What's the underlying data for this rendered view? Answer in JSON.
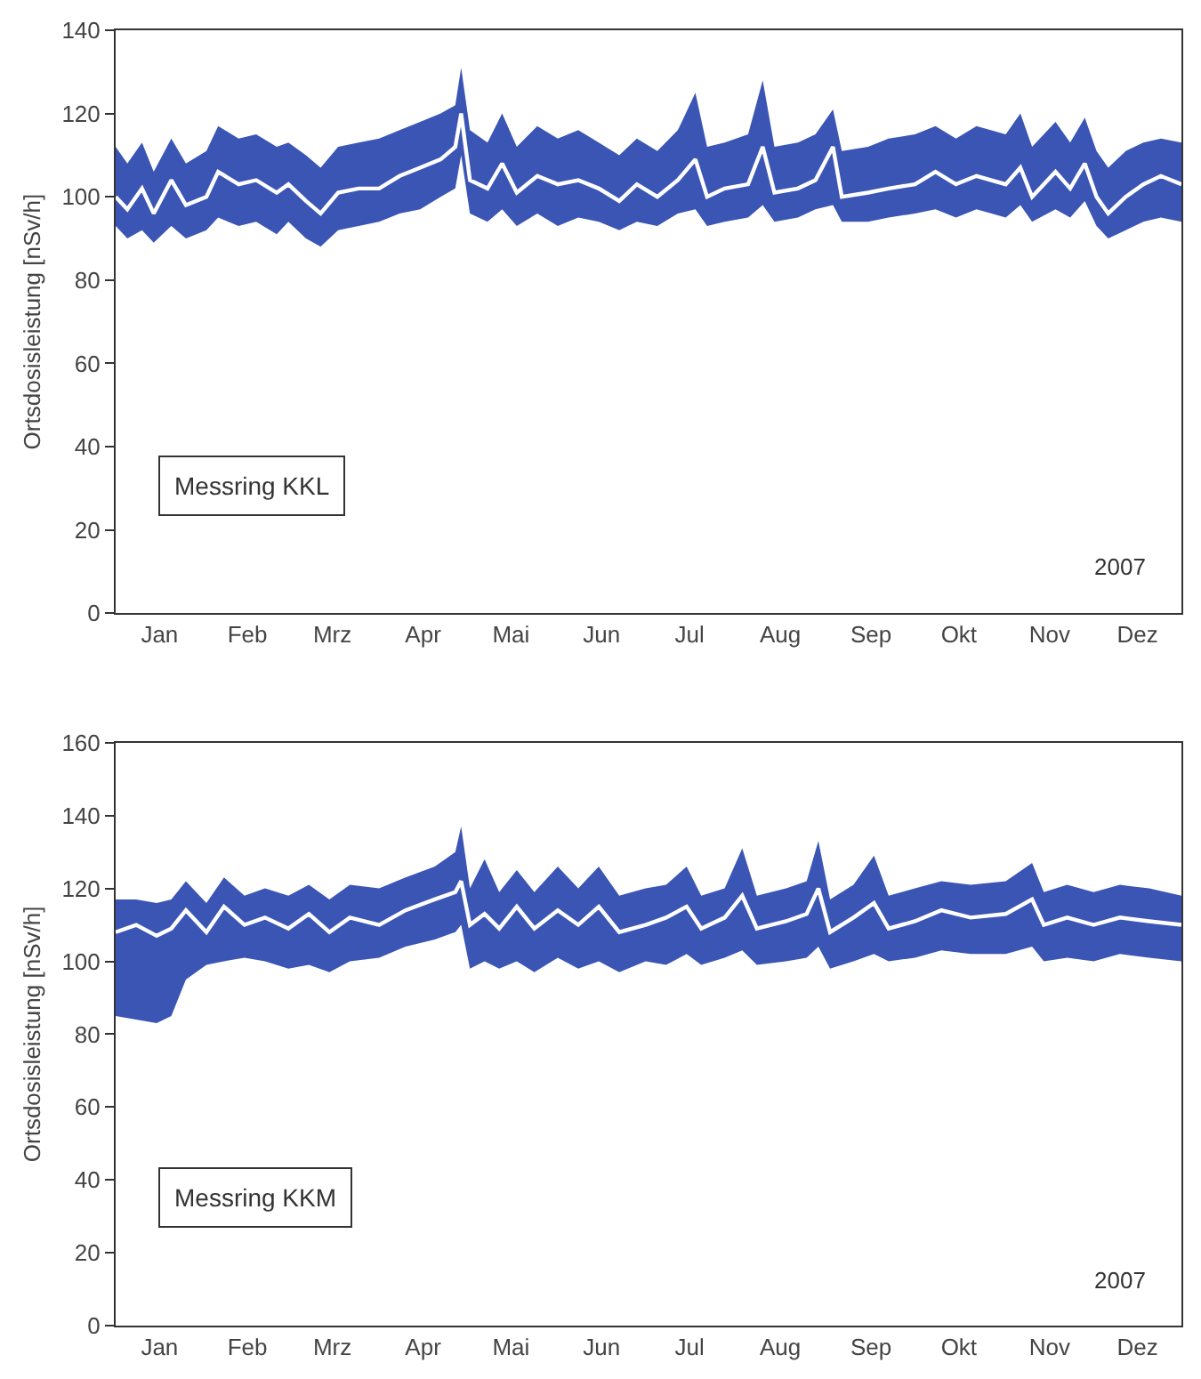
{
  "chart_data": [
    {
      "type": "line",
      "ylabel": "Ortsdosisleistung [nSv/h]",
      "annotations": [
        "Messring KKL",
        "2007"
      ],
      "colors": [
        "#3a55b4"
      ],
      "x": [
        "2007-01-01",
        "2007-01-05",
        "2007-01-10",
        "2007-01-14",
        "2007-01-20",
        "2007-01-25",
        "2007-02-01",
        "2007-02-05",
        "2007-02-12",
        "2007-02-18",
        "2007-02-25",
        "2007-03-01",
        "2007-03-07",
        "2007-03-12",
        "2007-03-18",
        "2007-03-25",
        "2007-04-01",
        "2007-04-08",
        "2007-04-15",
        "2007-04-22",
        "2007-04-27",
        "2007-04-29",
        "2007-05-02",
        "2007-05-08",
        "2007-05-13",
        "2007-05-18",
        "2007-05-25",
        "2007-06-01",
        "2007-06-08",
        "2007-06-15",
        "2007-06-22",
        "2007-06-28",
        "2007-07-05",
        "2007-07-12",
        "2007-07-18",
        "2007-07-22",
        "2007-07-28",
        "2007-08-05",
        "2007-08-10",
        "2007-08-14",
        "2007-08-22",
        "2007-08-28",
        "2007-09-03",
        "2007-09-06",
        "2007-09-15",
        "2007-09-22",
        "2007-10-01",
        "2007-10-08",
        "2007-10-15",
        "2007-10-22",
        "2007-11-01",
        "2007-11-06",
        "2007-11-10",
        "2007-11-18",
        "2007-11-23",
        "2007-11-28",
        "2007-12-02",
        "2007-12-06",
        "2007-12-12",
        "2007-12-18",
        "2007-12-24",
        "2007-12-31"
      ],
      "series": [
        {
          "color": "#ffffff",
          "values": [
            100,
            97,
            102,
            96,
            104,
            98,
            100,
            106,
            103,
            104,
            101,
            103,
            99,
            96,
            101,
            102,
            102,
            105,
            107,
            109,
            112,
            120,
            104,
            102,
            108,
            101,
            105,
            103,
            104,
            102,
            99,
            103,
            100,
            104,
            109,
            100,
            102,
            103,
            112,
            101,
            102,
            104,
            112,
            100,
            101,
            102,
            103,
            106,
            103,
            105,
            103,
            107,
            100,
            106,
            102,
            108,
            100,
            96,
            100,
            103,
            105,
            103
          ],
          "lower": [
            93,
            90,
            92,
            89,
            93,
            90,
            92,
            95,
            93,
            94,
            91,
            94,
            90,
            88,
            92,
            93,
            94,
            96,
            97,
            100,
            102,
            110,
            96,
            94,
            97,
            93,
            96,
            93,
            95,
            94,
            92,
            94,
            93,
            96,
            97,
            93,
            94,
            95,
            98,
            94,
            95,
            97,
            98,
            94,
            94,
            95,
            96,
            97,
            95,
            97,
            95,
            98,
            94,
            97,
            95,
            99,
            93,
            90,
            92,
            94,
            95,
            94
          ],
          "upper": [
            112,
            108,
            113,
            106,
            114,
            108,
            111,
            117,
            114,
            115,
            112,
            113,
            110,
            107,
            112,
            113,
            114,
            116,
            118,
            120,
            122,
            131,
            116,
            113,
            120,
            112,
            117,
            114,
            116,
            113,
            110,
            114,
            111,
            116,
            125,
            112,
            113,
            115,
            128,
            112,
            113,
            115,
            121,
            111,
            112,
            114,
            115,
            117,
            114,
            117,
            115,
            120,
            112,
            118,
            113,
            119,
            111,
            107,
            111,
            113,
            114,
            113
          ]
        }
      ],
      "xlim": [
        "2007-01-01",
        "2007-12-31"
      ],
      "xticks": [
        {
          "value": "2007-01-16",
          "label": "Jan"
        },
        {
          "value": "2007-02-15",
          "label": "Feb"
        },
        {
          "value": "2007-03-16",
          "label": "Mrz"
        },
        {
          "value": "2007-04-16",
          "label": "Apr"
        },
        {
          "value": "2007-05-16",
          "label": "Mai"
        },
        {
          "value": "2007-06-16",
          "label": "Jun"
        },
        {
          "value": "2007-07-16",
          "label": "Jul"
        },
        {
          "value": "2007-08-16",
          "label": "Aug"
        },
        {
          "value": "2007-09-16",
          "label": "Sep"
        },
        {
          "value": "2007-10-16",
          "label": "Okt"
        },
        {
          "value": "2007-11-16",
          "label": "Nov"
        },
        {
          "value": "2007-12-16",
          "label": "Dez"
        }
      ],
      "ylim": [
        0,
        140
      ],
      "yticks": [
        0,
        20,
        40,
        60,
        80,
        100,
        120,
        140
      ],
      "legend": false
    },
    {
      "type": "line",
      "ylabel": "Ortsdosisleistung [nSv/h]",
      "annotations": [
        "Messring KKM",
        "2007"
      ],
      "colors": [
        "#3a55b4"
      ],
      "x": [
        "2007-01-01",
        "2007-01-08",
        "2007-01-15",
        "2007-01-20",
        "2007-01-25",
        "2007-02-01",
        "2007-02-07",
        "2007-02-14",
        "2007-02-21",
        "2007-03-01",
        "2007-03-08",
        "2007-03-15",
        "2007-03-22",
        "2007-04-01",
        "2007-04-10",
        "2007-04-20",
        "2007-04-27",
        "2007-04-29",
        "2007-05-02",
        "2007-05-07",
        "2007-05-12",
        "2007-05-18",
        "2007-05-24",
        "2007-06-01",
        "2007-06-08",
        "2007-06-15",
        "2007-06-22",
        "2007-07-01",
        "2007-07-08",
        "2007-07-15",
        "2007-07-20",
        "2007-07-28",
        "2007-08-03",
        "2007-08-08",
        "2007-08-18",
        "2007-08-25",
        "2007-08-29",
        "2007-09-02",
        "2007-09-10",
        "2007-09-17",
        "2007-09-22",
        "2007-10-01",
        "2007-10-10",
        "2007-10-20",
        "2007-11-01",
        "2007-11-10",
        "2007-11-14",
        "2007-11-22",
        "2007-12-01",
        "2007-12-10",
        "2007-12-20",
        "2007-12-31"
      ],
      "series": [
        {
          "color": "#ffffff",
          "values": [
            108,
            110,
            107,
            109,
            114,
            108,
            115,
            110,
            112,
            109,
            113,
            108,
            112,
            110,
            114,
            117,
            119,
            122,
            110,
            113,
            109,
            115,
            109,
            114,
            110,
            115,
            108,
            110,
            112,
            115,
            109,
            112,
            118,
            109,
            111,
            113,
            120,
            108,
            112,
            116,
            109,
            111,
            114,
            112,
            113,
            117,
            110,
            112,
            110,
            112,
            111,
            110
          ],
          "lower": [
            85,
            84,
            83,
            85,
            95,
            99,
            100,
            101,
            100,
            98,
            99,
            97,
            100,
            101,
            104,
            106,
            108,
            110,
            98,
            100,
            98,
            100,
            97,
            101,
            98,
            100,
            97,
            100,
            99,
            102,
            99,
            101,
            103,
            99,
            100,
            101,
            104,
            98,
            100,
            102,
            100,
            101,
            103,
            102,
            102,
            104,
            100,
            101,
            100,
            102,
            101,
            100
          ],
          "upper": [
            117,
            117,
            116,
            117,
            122,
            116,
            123,
            118,
            120,
            118,
            121,
            117,
            121,
            120,
            123,
            126,
            130,
            137,
            120,
            128,
            119,
            125,
            119,
            126,
            120,
            126,
            118,
            120,
            121,
            126,
            118,
            120,
            131,
            118,
            120,
            122,
            133,
            117,
            121,
            129,
            118,
            120,
            122,
            121,
            122,
            127,
            119,
            121,
            119,
            121,
            120,
            118
          ]
        }
      ],
      "xlim": [
        "2007-01-01",
        "2007-12-31"
      ],
      "xticks": [
        {
          "value": "2007-01-16",
          "label": "Jan"
        },
        {
          "value": "2007-02-15",
          "label": "Feb"
        },
        {
          "value": "2007-03-16",
          "label": "Mrz"
        },
        {
          "value": "2007-04-16",
          "label": "Apr"
        },
        {
          "value": "2007-05-16",
          "label": "Mai"
        },
        {
          "value": "2007-06-16",
          "label": "Jun"
        },
        {
          "value": "2007-07-16",
          "label": "Jul"
        },
        {
          "value": "2007-08-16",
          "label": "Aug"
        },
        {
          "value": "2007-09-16",
          "label": "Sep"
        },
        {
          "value": "2007-10-16",
          "label": "Okt"
        },
        {
          "value": "2007-11-16",
          "label": "Nov"
        },
        {
          "value": "2007-12-16",
          "label": "Dez"
        }
      ],
      "ylim": [
        0,
        160
      ],
      "yticks": [
        0,
        20,
        40,
        60,
        80,
        100,
        120,
        140,
        160
      ],
      "legend": false
    }
  ]
}
